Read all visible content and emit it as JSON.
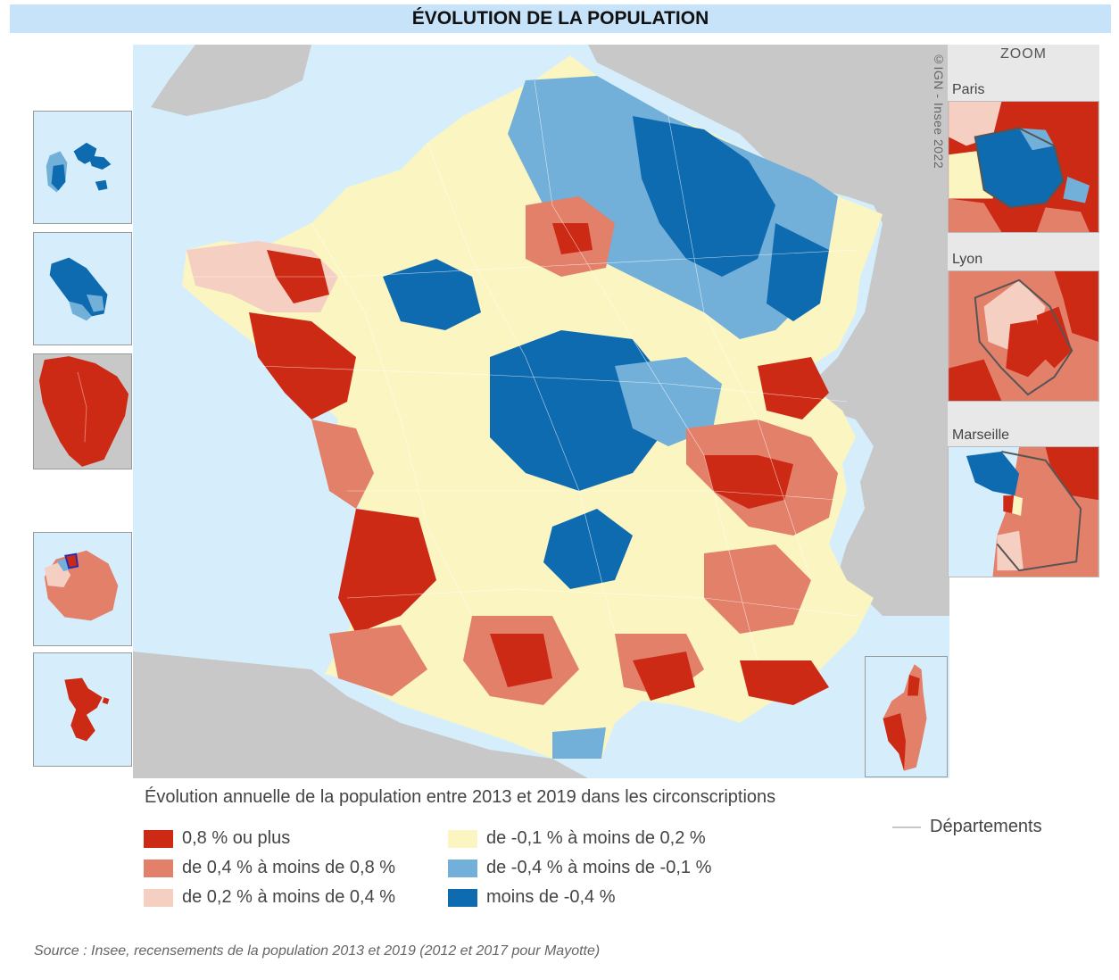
{
  "title": "ÉVOLUTION DE LA POPULATION",
  "copyright": "©IGN - Insee 2022",
  "zoom": {
    "title": "ZOOM",
    "cities": [
      "Paris",
      "Lyon",
      "Marseille"
    ]
  },
  "legend": {
    "title": "Évolution annuelle de la population entre 2013 et 2019 dans les circonscriptions",
    "classes": [
      {
        "label": "0,8 % ou plus",
        "color": "#cc2a14"
      },
      {
        "label": "de 0,4 % à moins de 0,8 %",
        "color": "#e2806a"
      },
      {
        "label": "de 0,2 % à moins de 0,4 %",
        "color": "#f5cfc2"
      },
      {
        "label": "de -0,1 % à moins de 0,2 %",
        "color": "#fbf5c2"
      },
      {
        "label": "de -0,4 % à moins de -0,1 %",
        "color": "#72b0da"
      },
      {
        "label": "moins de -0,4 %",
        "color": "#0f6bb0"
      }
    ],
    "boundary_label": "Départements"
  },
  "colors": {
    "sea": "#d6eefb",
    "neighbor_land": "#c8c8c8",
    "title_bar": "#c6e3fa",
    "department_line": "#c8c8c8"
  },
  "source": "Source : Insee, recensements de la population 2013 et 2019 (2012 et 2017 pour Mayotte)"
}
